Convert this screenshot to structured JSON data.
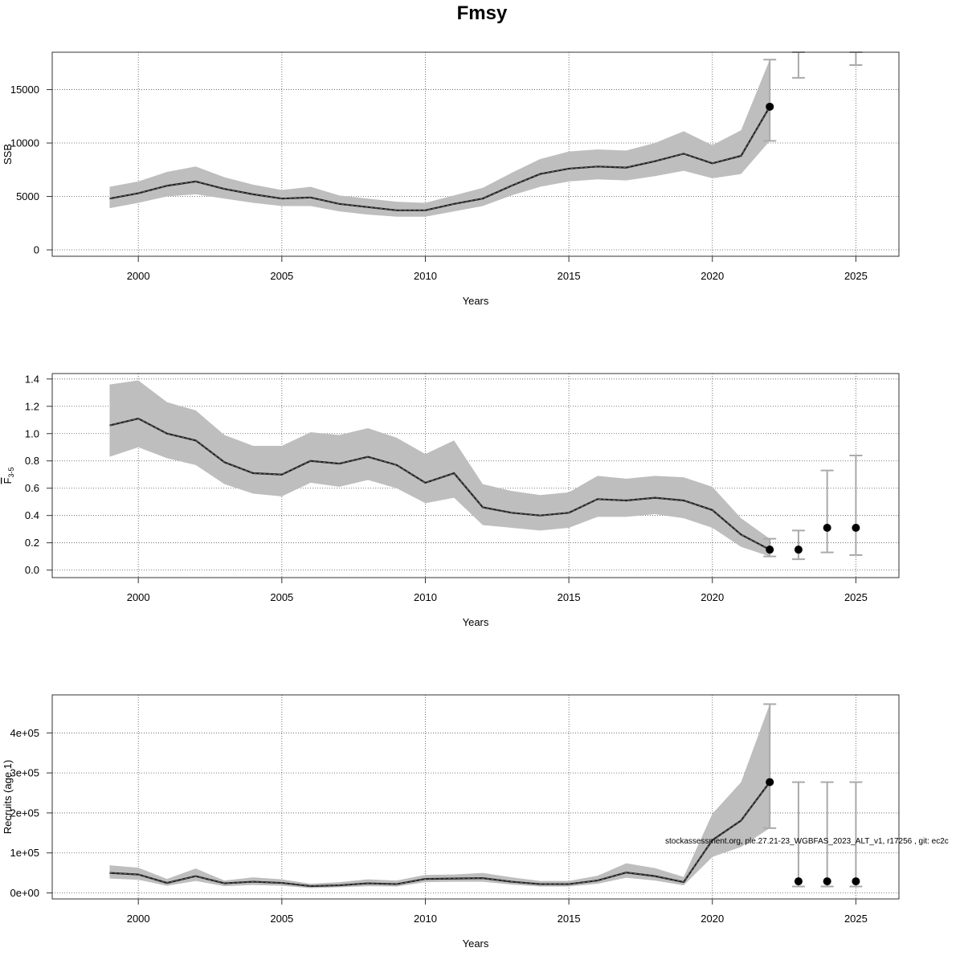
{
  "title": "Fmsy",
  "footnote": "stockassessment.org, ple.27.21-23_WGBFAS_2023_ALT_v1, r17256 , git: ec2c",
  "colors": {
    "band": "#bebebe",
    "line": "#222222",
    "errorbar": "#aaaaaa",
    "grid": "#555555",
    "frame": "#333333",
    "point": "#000000"
  },
  "chart_data": [
    {
      "type": "line",
      "ylabel": "SSB",
      "xlabel": "Years",
      "xlim": [
        1997,
        2026.5
      ],
      "ylim": [
        -600,
        18500
      ],
      "xticks": [
        2000,
        2005,
        2010,
        2015,
        2020,
        2025
      ],
      "yticks": [
        0,
        5000,
        10000,
        15000
      ],
      "ytick_labels": [
        "0",
        "5000",
        "10000",
        "15000"
      ],
      "grid": true,
      "x": [
        1999,
        2000,
        2001,
        2002,
        2003,
        2004,
        2005,
        2006,
        2007,
        2008,
        2009,
        2010,
        2011,
        2012,
        2013,
        2014,
        2015,
        2016,
        2017,
        2018,
        2019,
        2020,
        2021,
        2022
      ],
      "estimate": [
        4800,
        5300,
        6000,
        6400,
        5700,
        5200,
        4800,
        4900,
        4300,
        4000,
        3700,
        3700,
        4300,
        4800,
        6000,
        7100,
        7600,
        7800,
        7700,
        8300,
        9000,
        8100,
        8800,
        13400
      ],
      "lower": [
        3900,
        4400,
        5000,
        5200,
        4800,
        4400,
        4100,
        4100,
        3600,
        3300,
        3100,
        3100,
        3600,
        4100,
        5100,
        5900,
        6400,
        6600,
        6500,
        6900,
        7400,
        6700,
        7100,
        10200
      ],
      "upper": [
        5900,
        6400,
        7300,
        7800,
        6800,
        6100,
        5600,
        5900,
        5100,
        4800,
        4500,
        4400,
        5100,
        5800,
        7200,
        8500,
        9200,
        9400,
        9300,
        10000,
        11100,
        9800,
        11200,
        17800
      ],
      "points": [
        {
          "x": 2022,
          "y": 13400,
          "lower": 10200,
          "upper": 17800
        }
      ],
      "forecast": [
        {
          "x": 2023,
          "lower": 16100,
          "upper": 18500
        },
        {
          "x": 2025,
          "lower": 17300,
          "upper": 18500
        }
      ]
    },
    {
      "type": "line",
      "ylabel": "F̅ 3-5",
      "ylabel_main": "F",
      "ylabel_sub": "3-5",
      "xlabel": "Years",
      "xlim": [
        1997,
        2026.5
      ],
      "ylim": [
        -0.055,
        1.44
      ],
      "xticks": [
        2000,
        2005,
        2010,
        2015,
        2020,
        2025
      ],
      "yticks": [
        0,
        0.2,
        0.4,
        0.6,
        0.8,
        1.0,
        1.2,
        1.4
      ],
      "ytick_labels": [
        "0.0",
        "0.2",
        "0.4",
        "0.6",
        "0.8",
        "1.0",
        "1.2",
        "1.4"
      ],
      "grid": true,
      "x": [
        1999,
        2000,
        2001,
        2002,
        2003,
        2004,
        2005,
        2006,
        2007,
        2008,
        2009,
        2010,
        2011,
        2012,
        2013,
        2014,
        2015,
        2016,
        2017,
        2018,
        2019,
        2020,
        2021,
        2022
      ],
      "estimate": [
        1.06,
        1.11,
        1.0,
        0.95,
        0.79,
        0.71,
        0.7,
        0.8,
        0.78,
        0.83,
        0.77,
        0.64,
        0.71,
        0.46,
        0.42,
        0.4,
        0.42,
        0.52,
        0.51,
        0.53,
        0.51,
        0.44,
        0.26,
        0.15
      ],
      "lower": [
        0.83,
        0.9,
        0.82,
        0.77,
        0.63,
        0.56,
        0.54,
        0.64,
        0.61,
        0.66,
        0.6,
        0.49,
        0.53,
        0.33,
        0.31,
        0.29,
        0.31,
        0.39,
        0.39,
        0.41,
        0.38,
        0.31,
        0.17,
        0.1
      ],
      "upper": [
        1.36,
        1.39,
        1.23,
        1.17,
        0.99,
        0.91,
        0.91,
        1.01,
        0.99,
        1.04,
        0.97,
        0.85,
        0.95,
        0.63,
        0.58,
        0.55,
        0.57,
        0.69,
        0.67,
        0.69,
        0.68,
        0.61,
        0.38,
        0.23
      ],
      "points": [
        {
          "x": 2022,
          "y": 0.15,
          "lower": 0.1,
          "upper": 0.23
        }
      ],
      "forecast": [
        {
          "x": 2023,
          "y": 0.15,
          "lower": 0.08,
          "upper": 0.29
        },
        {
          "x": 2024,
          "y": 0.31,
          "lower": 0.13,
          "upper": 0.73
        },
        {
          "x": 2025,
          "y": 0.31,
          "lower": 0.11,
          "upper": 0.84
        }
      ]
    },
    {
      "type": "line",
      "ylabel": "Recruits (age 1)",
      "xlabel": "Years",
      "xlim": [
        1997,
        2026.5
      ],
      "ylim": [
        -15000,
        495000
      ],
      "xticks": [
        2000,
        2005,
        2010,
        2015,
        2020,
        2025
      ],
      "yticks": [
        0,
        100000,
        200000,
        300000,
        400000
      ],
      "ytick_labels": [
        "0e+00",
        "1e+05",
        "2e+05",
        "3e+05",
        "4e+05"
      ],
      "grid": true,
      "x": [
        1999,
        2000,
        2001,
        2002,
        2003,
        2004,
        2005,
        2006,
        2007,
        2008,
        2009,
        2010,
        2011,
        2012,
        2013,
        2014,
        2015,
        2016,
        2017,
        2018,
        2019,
        2020,
        2021,
        2022
      ],
      "estimate": [
        50000,
        46000,
        25000,
        42000,
        24000,
        28000,
        25000,
        17000,
        19000,
        24000,
        22000,
        35000,
        36000,
        37000,
        28000,
        22000,
        22000,
        31000,
        51000,
        42000,
        27000,
        132000,
        181000,
        277000
      ],
      "lower": [
        36000,
        33000,
        18000,
        30000,
        17000,
        20000,
        18000,
        12000,
        14000,
        17000,
        16000,
        27000,
        28000,
        28000,
        21000,
        16000,
        16000,
        23000,
        38000,
        31000,
        19000,
        90000,
        115000,
        162000
      ],
      "upper": [
        69000,
        63000,
        35000,
        61000,
        31000,
        39000,
        34000,
        23000,
        27000,
        34000,
        31000,
        45000,
        46000,
        50000,
        39000,
        30000,
        30000,
        43000,
        74000,
        62000,
        40000,
        198000,
        277000,
        472000
      ],
      "points": [
        {
          "x": 2022,
          "y": 277000,
          "lower": 162000,
          "upper": 472000
        }
      ],
      "forecast": [
        {
          "x": 2023,
          "y": 29000,
          "lower": 16000,
          "upper": 277000
        },
        {
          "x": 2024,
          "y": 29000,
          "lower": 16000,
          "upper": 277000
        },
        {
          "x": 2025,
          "y": 29000,
          "lower": 16000,
          "upper": 277000
        }
      ]
    }
  ]
}
